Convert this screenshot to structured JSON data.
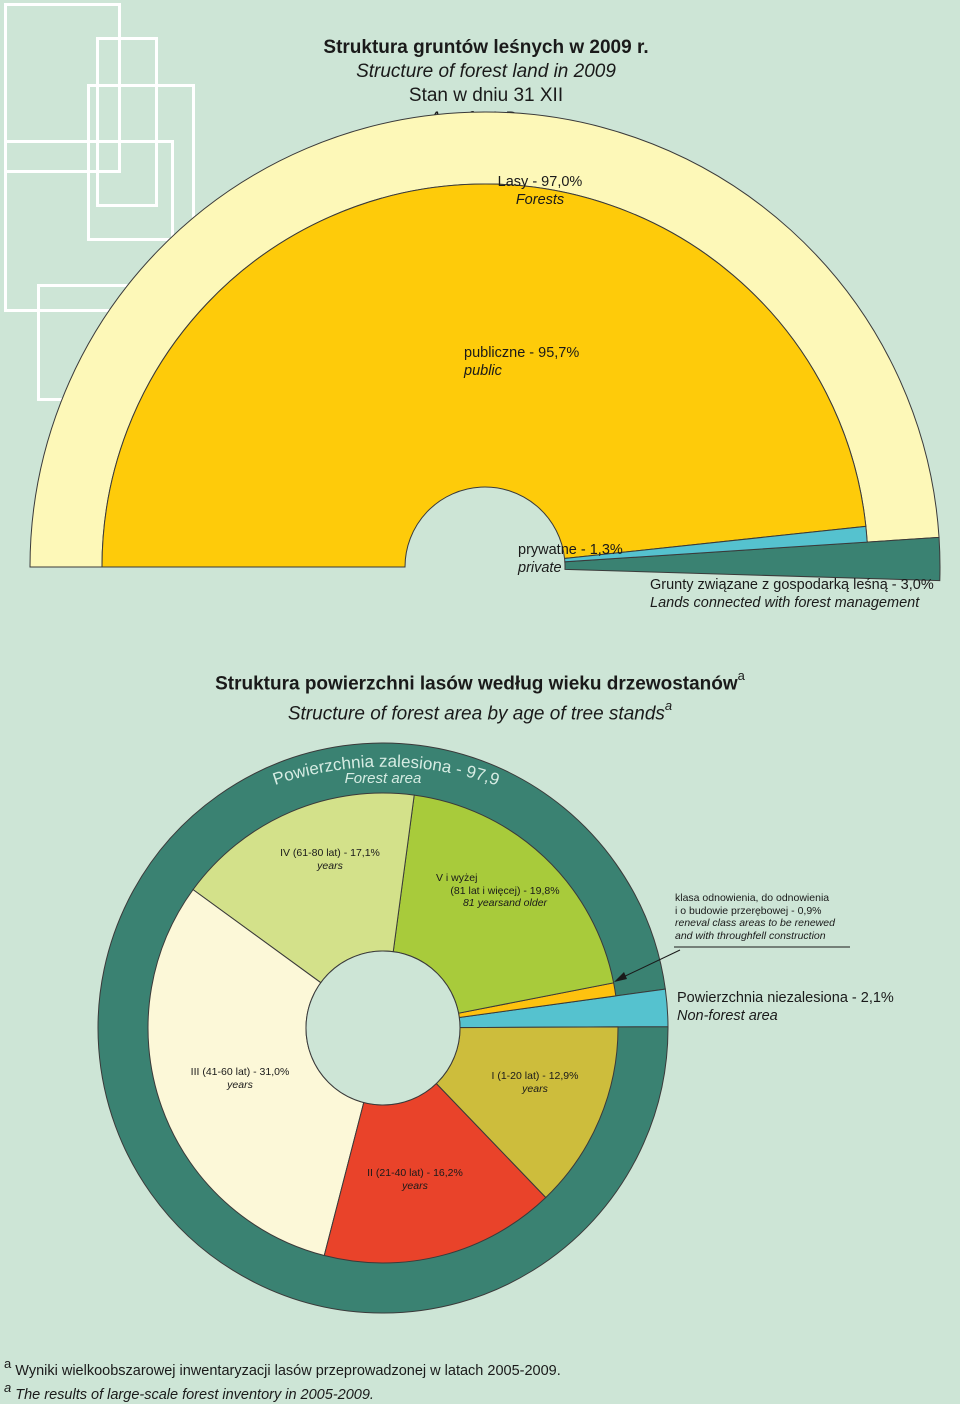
{
  "header": {
    "line1": "Struktura gruntów leśnych w 2009 r.",
    "line2": "Structure of forest land in 2009",
    "line3": "Stan w dniu 31 XII",
    "line4": "As of 31 Dec."
  },
  "section2": {
    "title_pl": "Struktura powierzchni lasów według wieku drzewostanów",
    "title_en": "Structure of forest area by age of tree stands",
    "sup": "a"
  },
  "footnote": {
    "sup": "a",
    "pl": "Wyniki wielkoobszarowej inwentaryzacji lasów przeprowadzonej w latach 2005-2009.",
    "en": "The results of large-scale forest inventory in 2005-2009."
  },
  "colors": {
    "background": "#cde5d6",
    "forests_ring": "#fdf8b8",
    "public": "#fecb0a",
    "private": "#55c2cf",
    "forest_mgmt": "#3a8272",
    "forest_area_ring": "#3a8272",
    "non_forest": "#55c2cf",
    "age_IV": "#d3e18a",
    "age_V": "#a8cb3b",
    "age_renewal": "#fec20f",
    "age_I": "#cdbd3c",
    "age_II": "#e9432a",
    "age_III": "#fcf8d8"
  },
  "chart_data": [
    {
      "type": "pie",
      "variant": "half-donut",
      "title": "Struktura gruntów leśnych w 2009 r.",
      "outer_ring": [
        {
          "label_pl": "Lasy",
          "label_en": "Forests",
          "value": 97.0,
          "text_pl": "Lasy - 97,0%",
          "text_en": "Forests"
        },
        {
          "label_pl": "Grunty związane z gospodarką leśną",
          "label_en": "Lands connected with forest management",
          "value": 3.0,
          "text_pl": "Grunty związane z gospodarką leśną - 3,0%",
          "text_en": "Lands connected with forest management"
        }
      ],
      "inner_ring": [
        {
          "label_pl": "publiczne",
          "label_en": "public",
          "value": 95.7,
          "text_pl": "publiczne - 95,7%",
          "text_en": "public"
        },
        {
          "label_pl": "prywatne",
          "label_en": "private",
          "value": 1.3,
          "text_pl": "prywatne - 1,3%",
          "text_en": "private"
        }
      ]
    },
    {
      "type": "pie",
      "variant": "donut",
      "title": "Struktura powierzchni lasów według wieku drzewostanów",
      "outer_ring": [
        {
          "label_pl": "Powierzchnia zalesiona",
          "label_en": "Forest area",
          "value": 97.9,
          "text_pl": "Powierzchnia zalesiona - 97,9%",
          "text_en": "Forest area"
        },
        {
          "label_pl": "Powierzchnia niezalesiona",
          "label_en": "Non-forest area",
          "value": 2.1,
          "text_pl": "Powierzchnia niezalesiona - 2,1%",
          "text_en": "Non-forest area"
        }
      ],
      "inner_ring": [
        {
          "key": "V",
          "value": 19.8,
          "text_pl": "V i wyżej",
          "text_pl2": "(81 lat i więcej) - 19,8%",
          "text_en": "81 yearsand older"
        },
        {
          "key": "IV",
          "value": 17.1,
          "text_pl": "IV (61-80 lat) - 17,1%",
          "text_en": "years"
        },
        {
          "key": "III",
          "value": 31.0,
          "text_pl": "III (41-60 lat) - 31,0%",
          "text_en": "years"
        },
        {
          "key": "II",
          "value": 16.2,
          "text_pl": "II (21-40 lat) - 16,2%",
          "text_en": "years"
        },
        {
          "key": "I",
          "value": 12.9,
          "text_pl": "I (1-20 lat) - 12,9%",
          "text_en": "years"
        },
        {
          "key": "renewal",
          "value": 0.9,
          "text_pl1": "klasa odnowienia, do odnowienia",
          "text_pl2": "i o budowie przerębowej - 0,9%",
          "text_en1": "reneval class areas to be renewed",
          "text_en2": "and with throughfell construction"
        }
      ]
    }
  ]
}
